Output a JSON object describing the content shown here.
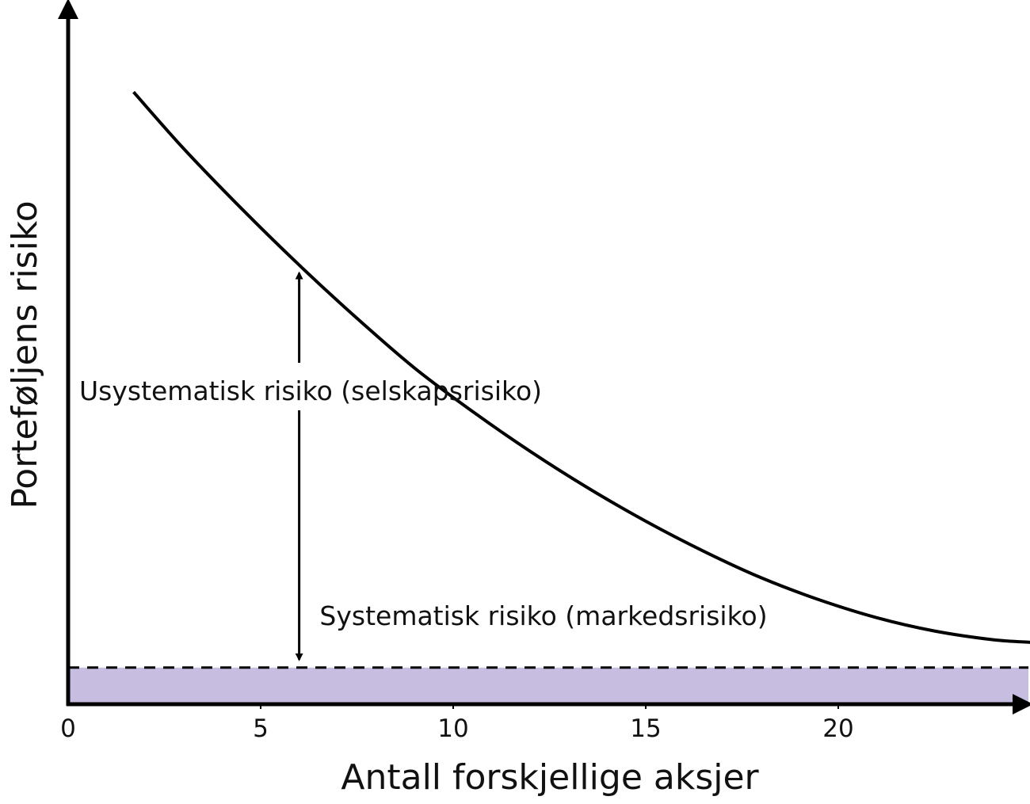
{
  "chart_data": {
    "type": "line",
    "title": "",
    "xlabel": "Antall forskjellige aksjer",
    "ylabel": "Porteføljens risiko",
    "xlim": [
      0,
      25
    ],
    "x_ticks": [
      "0",
      "5",
      "10",
      "15",
      "20"
    ],
    "y_ticks": [],
    "grid": false,
    "series": [
      {
        "values_x": [
          1.7,
          3,
          4.5,
          6,
          7.5,
          9,
          10.5,
          12,
          13.5,
          15,
          16.5,
          18,
          19.5,
          21,
          22.5,
          24,
          25
        ],
        "values_y": [
          0.92,
          0.835,
          0.745,
          0.66,
          0.58,
          0.505,
          0.44,
          0.38,
          0.325,
          0.275,
          0.23,
          0.19,
          0.157,
          0.13,
          0.11,
          0.097,
          0.093
        ]
      }
    ],
    "systematic_level": 0.055,
    "arrow_x": 6,
    "annotations": {
      "unsystematic": "Usystematisk risiko (selskapsrisiko)",
      "systematic": "Systematisk risiko (markedsrisiko)"
    },
    "colors": {
      "systematic_fill": "#c6bde0",
      "line": "#000000"
    }
  }
}
